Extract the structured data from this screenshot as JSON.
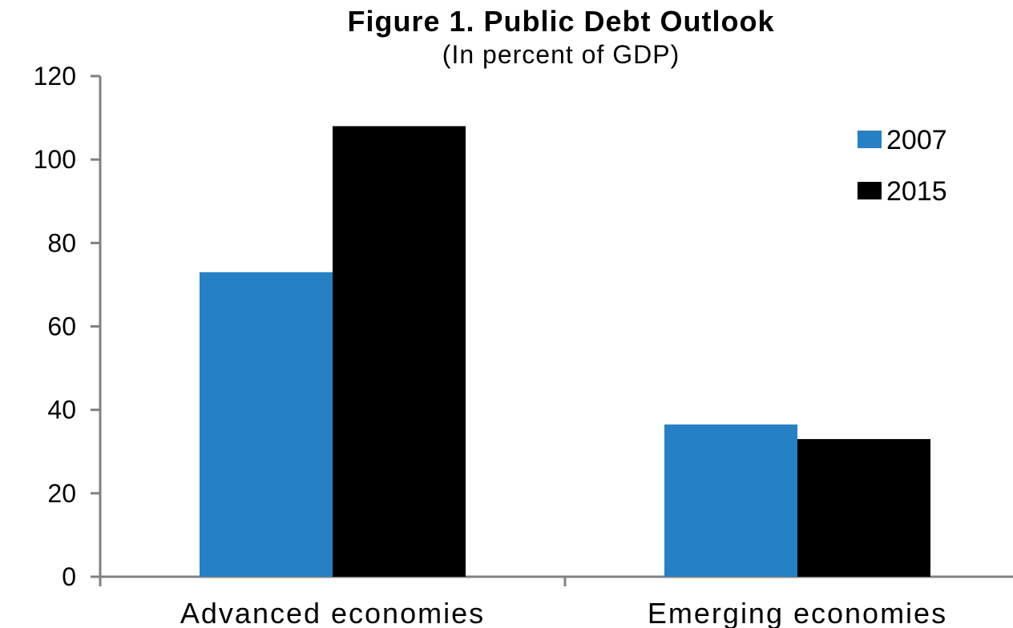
{
  "chart_data": {
    "type": "bar",
    "title": "Figure 1. Public Debt Outlook",
    "subtitle": "(In percent of GDP)",
    "xlabel": "",
    "ylabel": "",
    "categories": [
      "Advanced economies",
      "Emerging economies"
    ],
    "series": [
      {
        "name": "2007",
        "values": [
          73,
          36.5
        ],
        "color": "#2681c4"
      },
      {
        "name": "2015",
        "values": [
          108,
          33
        ],
        "color": "#000000"
      }
    ],
    "ylim": [
      0,
      120
    ],
    "yticks": [
      0,
      20,
      40,
      60,
      80,
      100,
      120
    ],
    "grid": false,
    "legend": "top-right",
    "axis_color": "#808080"
  }
}
